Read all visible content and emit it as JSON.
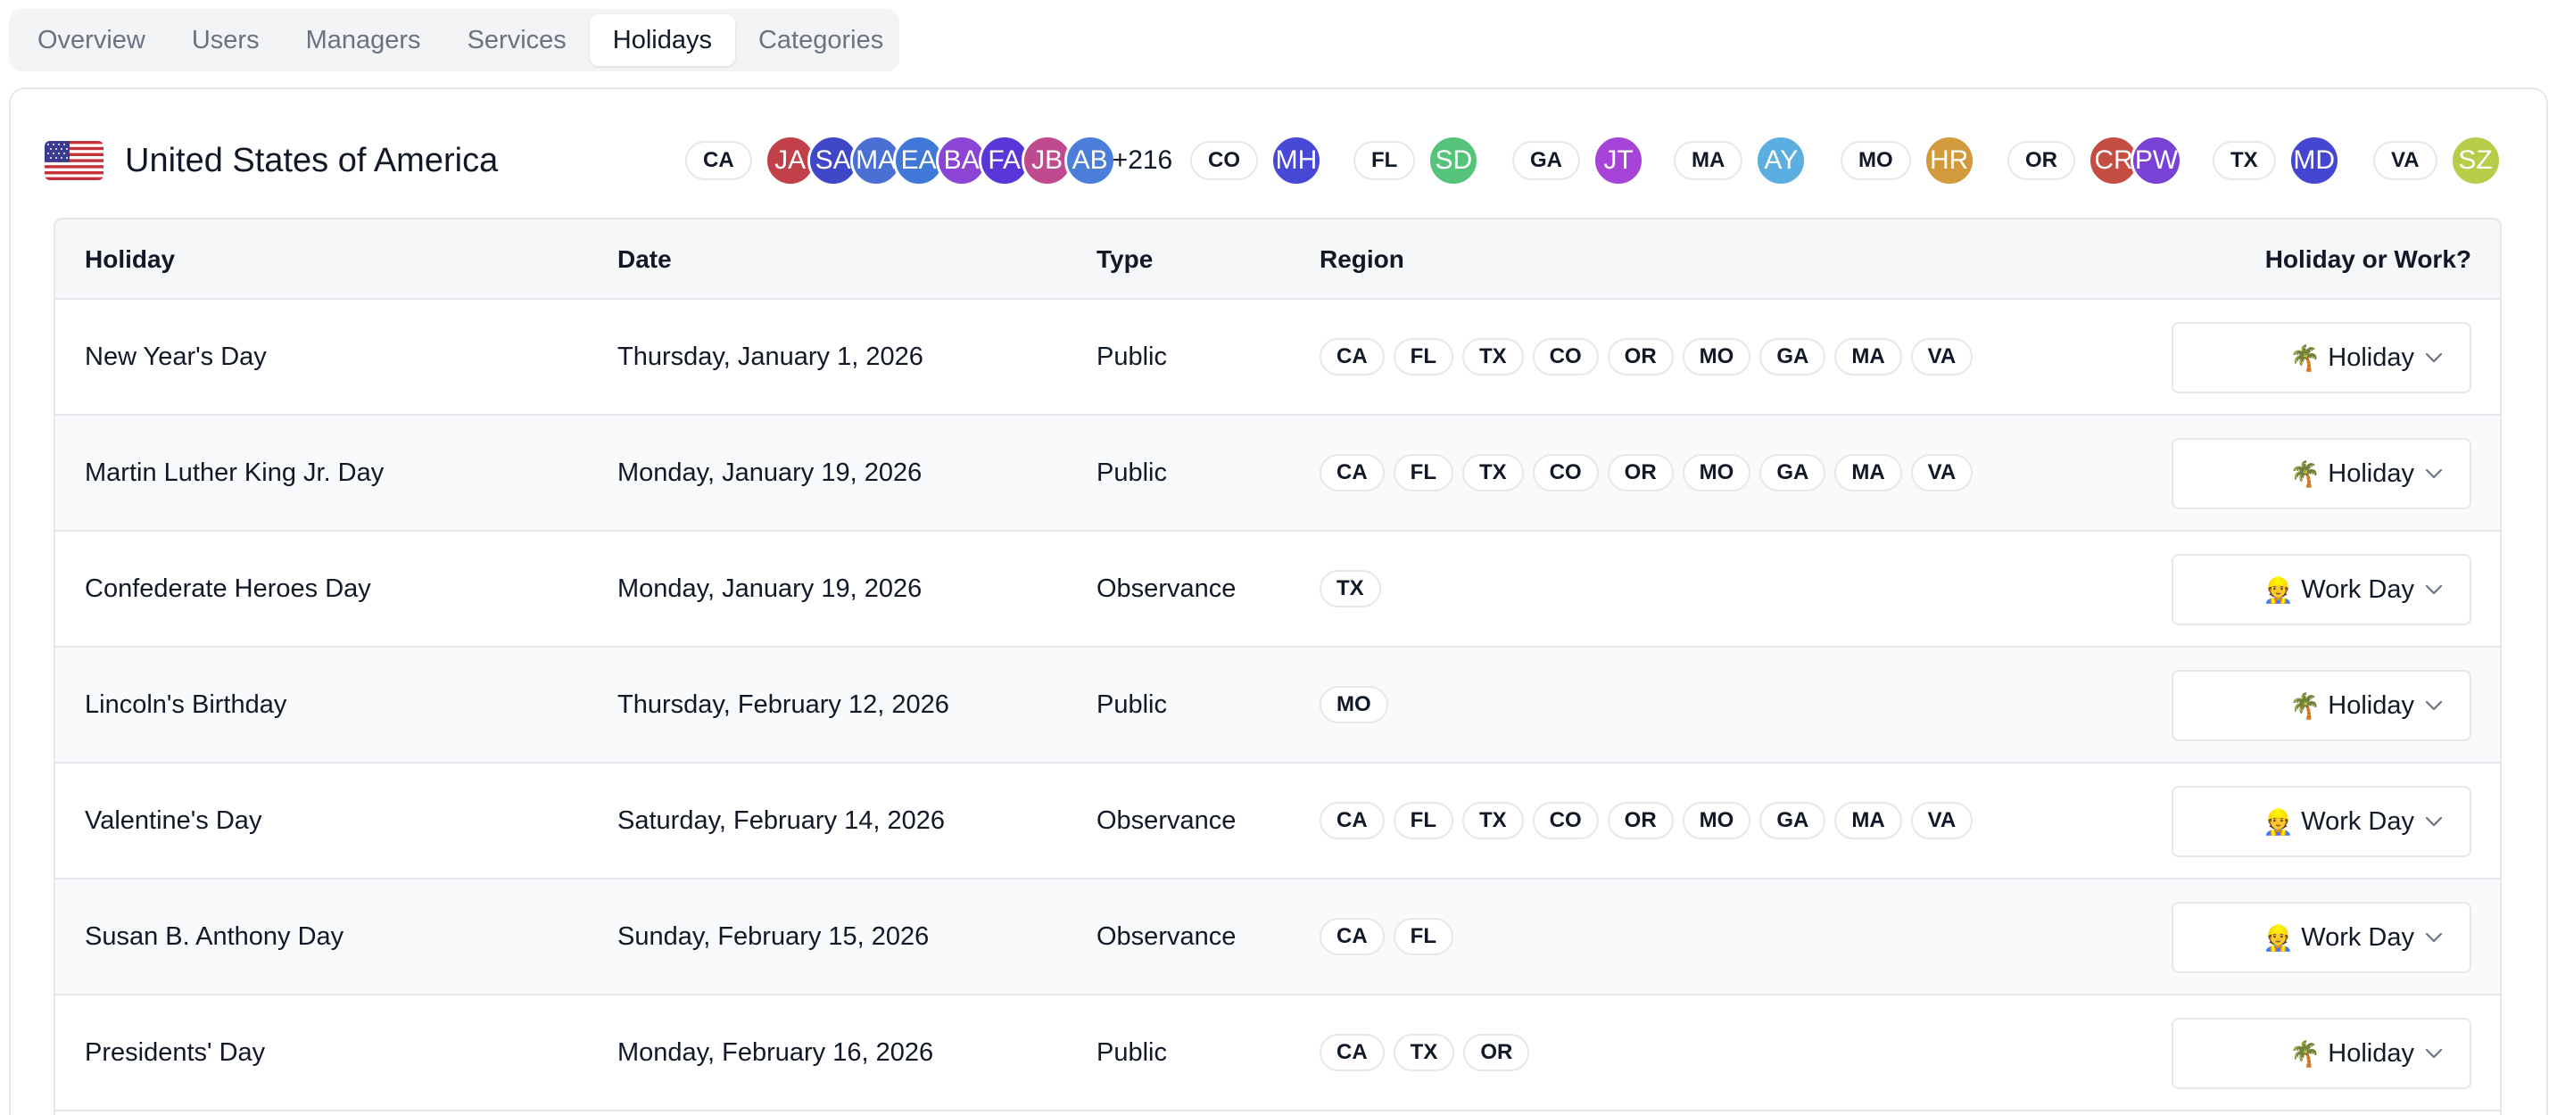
{
  "tabs": [
    {
      "label": "Overview",
      "active": false
    },
    {
      "label": "Users",
      "active": false
    },
    {
      "label": "Managers",
      "active": false
    },
    {
      "label": "Services",
      "active": false
    },
    {
      "label": "Holidays",
      "active": true
    },
    {
      "label": "Categories",
      "active": false
    }
  ],
  "country": {
    "name": "United States of America",
    "flag": "us-flag-icon"
  },
  "region_groups": [
    {
      "code": "CA",
      "avatars": [
        {
          "initials": "JA",
          "color": "#c2404a"
        },
        {
          "initials": "SA",
          "color": "#4046c8"
        },
        {
          "initials": "MA",
          "color": "#4a70d4"
        },
        {
          "initials": "EA",
          "color": "#3f78d6"
        },
        {
          "initials": "BA",
          "color": "#8b44d4"
        },
        {
          "initials": "FA",
          "color": "#5a36d8"
        },
        {
          "initials": "JB",
          "color": "#c04a8e"
        },
        {
          "initials": "AB",
          "color": "#4a7ed8"
        }
      ],
      "more": "+216"
    },
    {
      "code": "CO",
      "avatars": [
        {
          "initials": "MH",
          "color": "#4748d6"
        }
      ]
    },
    {
      "code": "FL",
      "avatars": [
        {
          "initials": "SD",
          "color": "#55c47a"
        }
      ]
    },
    {
      "code": "GA",
      "avatars": [
        {
          "initials": "JT",
          "color": "#a544d6"
        }
      ]
    },
    {
      "code": "MA",
      "avatars": [
        {
          "initials": "AY",
          "color": "#5aaee0"
        }
      ]
    },
    {
      "code": "MO",
      "avatars": [
        {
          "initials": "HR",
          "color": "#d29a3c"
        }
      ]
    },
    {
      "code": "OR",
      "avatars": [
        {
          "initials": "CR",
          "color": "#c44e44"
        },
        {
          "initials": "PW",
          "color": "#7a42d4"
        }
      ]
    },
    {
      "code": "TX",
      "avatars": [
        {
          "initials": "MD",
          "color": "#4446d2"
        }
      ]
    },
    {
      "code": "VA",
      "avatars": [
        {
          "initials": "SZ",
          "color": "#b8cc4a"
        }
      ]
    }
  ],
  "table": {
    "headers": {
      "holiday": "Holiday",
      "date": "Date",
      "type": "Type",
      "region": "Region",
      "choice": "Holiday or Work?"
    },
    "rows": [
      {
        "name": "New Year's Day",
        "date": "Thursday, January 1, 2026",
        "type": "Public",
        "regions": [
          "CA",
          "FL",
          "TX",
          "CO",
          "OR",
          "MO",
          "GA",
          "MA",
          "VA"
        ],
        "choice": "Holiday",
        "choice_emoji": "🌴"
      },
      {
        "name": "Martin Luther King Jr. Day",
        "date": "Monday, January 19, 2026",
        "type": "Public",
        "regions": [
          "CA",
          "FL",
          "TX",
          "CO",
          "OR",
          "MO",
          "GA",
          "MA",
          "VA"
        ],
        "choice": "Holiday",
        "choice_emoji": "🌴"
      },
      {
        "name": "Confederate Heroes Day",
        "date": "Monday, January 19, 2026",
        "type": "Observance",
        "regions": [
          "TX"
        ],
        "choice": "Work Day",
        "choice_emoji": "👷"
      },
      {
        "name": "Lincoln's Birthday",
        "date": "Thursday, February 12, 2026",
        "type": "Public",
        "regions": [
          "MO"
        ],
        "choice": "Holiday",
        "choice_emoji": "🌴"
      },
      {
        "name": "Valentine's Day",
        "date": "Saturday, February 14, 2026",
        "type": "Observance",
        "regions": [
          "CA",
          "FL",
          "TX",
          "CO",
          "OR",
          "MO",
          "GA",
          "MA",
          "VA"
        ],
        "choice": "Work Day",
        "choice_emoji": "👷"
      },
      {
        "name": "Susan B. Anthony Day",
        "date": "Sunday, February 15, 2026",
        "type": "Observance",
        "regions": [
          "CA",
          "FL"
        ],
        "choice": "Work Day",
        "choice_emoji": "👷"
      },
      {
        "name": "Presidents' Day",
        "date": "Monday, February 16, 2026",
        "type": "Public",
        "regions": [
          "CA",
          "TX",
          "OR"
        ],
        "choice": "Holiday",
        "choice_emoji": "🌴"
      }
    ]
  }
}
